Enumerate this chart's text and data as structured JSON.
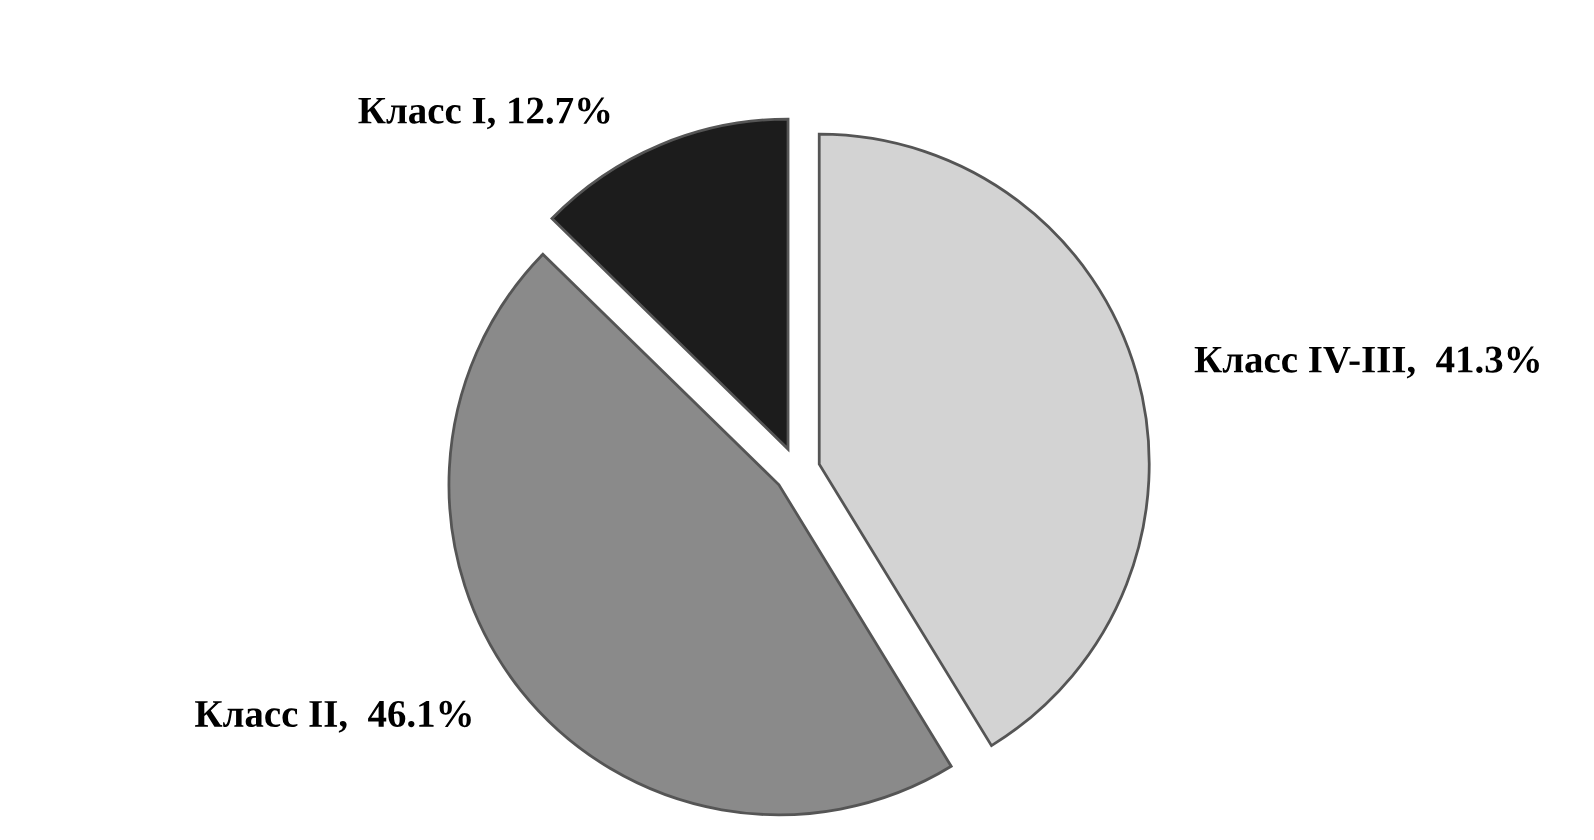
{
  "chart_data": {
    "type": "pie",
    "categories": [
      "Класс IV-III,  41.3%",
      "Класс II,  46.1%",
      "Класс I, 12.7%"
    ],
    "values": [
      41.3,
      46.1,
      12.7
    ],
    "colors": [
      "#d3d3d3",
      "#8a8a8a",
      "#1c1c1c"
    ],
    "legend": false
  }
}
